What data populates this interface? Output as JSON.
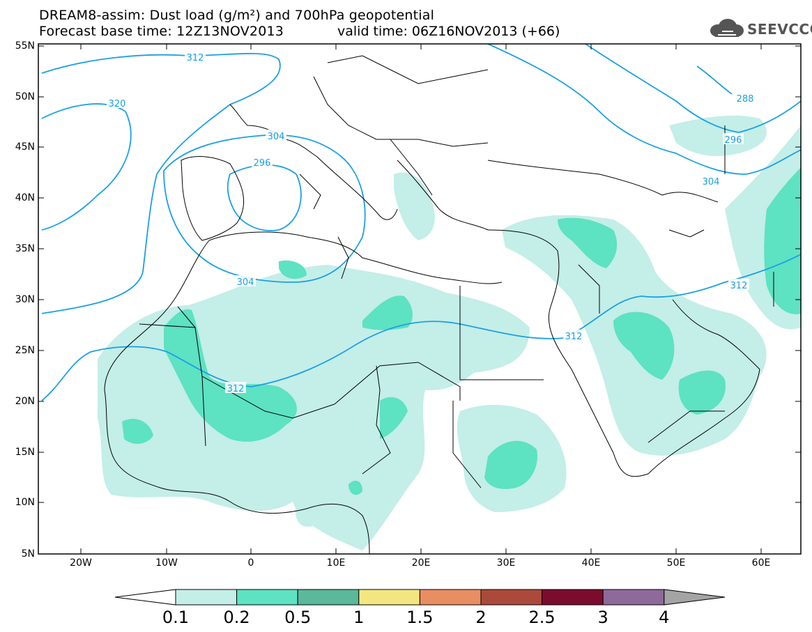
{
  "header": {
    "title_line1": "DREAM8-assim: Dust load (g/m²) and 700hPa geopotential",
    "title_line2": "Forecast base time: 12Z13NOV2013",
    "valid_time": "valid time: 06Z16NOV2013 (+66)",
    "logo_text": "SEEVCCC"
  },
  "map": {
    "lat_labels": [
      "55N",
      "50N",
      "45N",
      "40N",
      "35N",
      "30N",
      "25N",
      "20N",
      "15N",
      "10N",
      "5N"
    ],
    "lon_labels": [
      "20W",
      "10W",
      "0",
      "10E",
      "20E",
      "30E",
      "40E",
      "50E",
      "60E"
    ],
    "geopotential_labels": [
      "312",
      "320",
      "304",
      "296",
      "304",
      "312",
      "312",
      "312",
      "288",
      "296",
      "304"
    ]
  },
  "colorbar": {
    "labels": [
      "0.1",
      "0.2",
      "0.5",
      "1",
      "1.5",
      "2",
      "2.5",
      "3",
      "4"
    ],
    "colors": [
      "#c4eee8",
      "#5de2c2",
      "#5ab89b",
      "#f3e680",
      "#e98d63",
      "#ab4a3c",
      "#7c0c2d",
      "#8e6a9b",
      "#a4a4a4"
    ]
  },
  "colors": {
    "dust_light": "#c4eee8",
    "dust_mid": "#5de2c2",
    "contour": "#1aa0e6",
    "border": "#000000"
  }
}
